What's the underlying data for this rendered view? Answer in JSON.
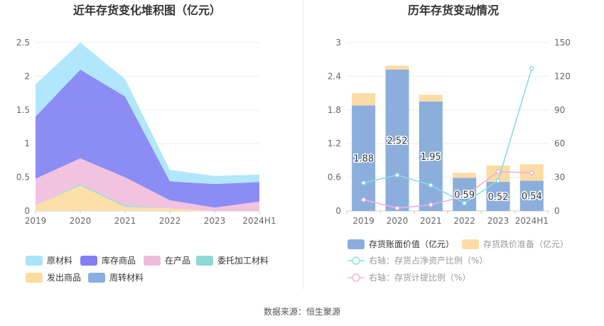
{
  "source": "数据来源：恒生聚源",
  "chart_data": [
    {
      "type": "area",
      "title": "近年存货变化堆积图（亿元）",
      "categories": [
        "2019",
        "2020",
        "2021",
        "2022",
        "2023",
        "2024H1"
      ],
      "ylim": [
        0,
        2.5
      ],
      "yticks": [
        "0",
        "0.5",
        "1",
        "1.5",
        "2",
        "2.5"
      ],
      "grid": true,
      "legend_position": "bottom",
      "series": [
        {
          "name": "发出商品",
          "color": "#fcdca0",
          "values": [
            0.08,
            0.38,
            0.06,
            0.04,
            0.0,
            0.0
          ]
        },
        {
          "name": "委托加工材料",
          "color": "#8ed8d8",
          "values": [
            0.0,
            0.02,
            0.02,
            0.0,
            0.0,
            0.0
          ]
        },
        {
          "name": "周转材料",
          "color": "#8aaee0",
          "values": [
            0.0,
            0.0,
            0.0,
            0.0,
            0.0,
            0.0
          ]
        },
        {
          "name": "在产品",
          "color": "#f0bcdc",
          "values": [
            0.4,
            0.38,
            0.42,
            0.12,
            0.05,
            0.14
          ]
        },
        {
          "name": "库存商品",
          "color": "#8080f4",
          "values": [
            0.92,
            1.32,
            1.2,
            0.28,
            0.35,
            0.29
          ]
        },
        {
          "name": "原材料",
          "color": "#a8e4fc",
          "values": [
            0.48,
            0.4,
            0.26,
            0.17,
            0.12,
            0.11
          ]
        }
      ],
      "legend_order": [
        "原材料",
        "库存商品",
        "在产品",
        "委托加工材料",
        "发出商品",
        "周转材料"
      ]
    },
    {
      "type": "bar",
      "title": "历年存货变动情况",
      "categories": [
        "2019",
        "2020",
        "2021",
        "2022",
        "2023",
        "2024H1"
      ],
      "ylim": [
        0,
        3
      ],
      "yticks": [
        "0",
        "0.6",
        "1.2",
        "1.8",
        "2.4",
        "3"
      ],
      "y2lim": [
        0,
        150
      ],
      "y2ticks": [
        "0",
        "30",
        "60",
        "90",
        "120",
        "150"
      ],
      "grid": true,
      "legend_position": "bottom",
      "series": [
        {
          "name": "存货账面价值（亿元）",
          "color": "#8caedc",
          "values": [
            1.88,
            2.52,
            1.95,
            0.59,
            0.52,
            0.54
          ],
          "labels": [
            "1.88",
            "2.52",
            "1.95",
            "0.59",
            "0.52",
            "0.54"
          ]
        },
        {
          "name": "存货跌价准备（亿元）",
          "color": "#fcdca4",
          "values": [
            0.22,
            0.07,
            0.12,
            0.09,
            0.29,
            0.29
          ]
        },
        {
          "name": "右轴：存货占净资产比例（%）",
          "color": "#88dce8",
          "axis": "right",
          "type": "line",
          "values": [
            25,
            32,
            23,
            7,
            27,
            127
          ]
        },
        {
          "name": "右轴：存货计提比例（%）",
          "color": "#e8b4dc",
          "axis": "right",
          "type": "line",
          "values": [
            10,
            2.5,
            5.5,
            13,
            35,
            34
          ]
        }
      ]
    }
  ]
}
